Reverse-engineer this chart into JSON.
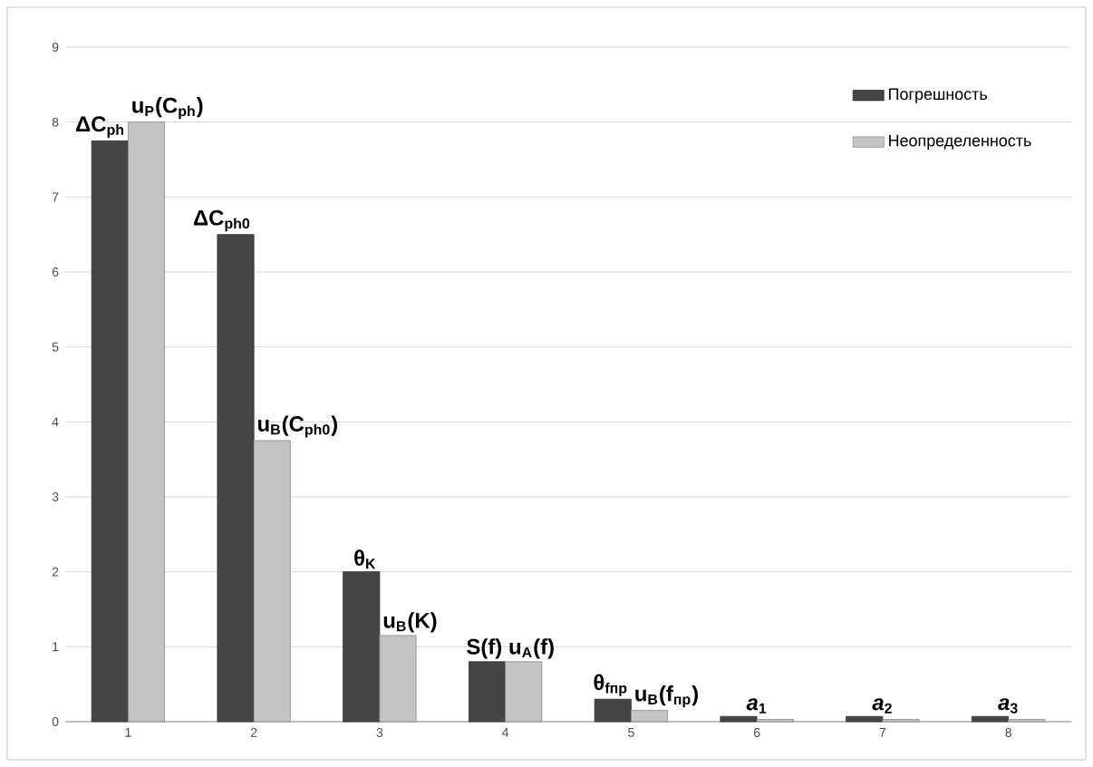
{
  "chart_data": {
    "type": "bar",
    "categories": [
      "1",
      "2",
      "3",
      "4",
      "5",
      "6",
      "7",
      "8"
    ],
    "series": [
      {
        "name": "Погрешность",
        "color": "#454545",
        "values": [
          7.75,
          6.5,
          2.0,
          0.8,
          0.3,
          0.07,
          0.07,
          0.07
        ]
      },
      {
        "name": "Неопределенность",
        "color": "#c4c4c4",
        "values": [
          8.0,
          3.75,
          1.15,
          0.8,
          0.15,
          0.03,
          0.03,
          0.03
        ]
      }
    ],
    "ylim": [
      0,
      9
    ],
    "yticks": [
      0,
      1,
      2,
      3,
      4,
      5,
      6,
      7,
      8,
      9
    ],
    "grid": "y",
    "legend": "top right",
    "annotations": [
      {
        "text": "ΔC$_{ph}$",
        "x": "1",
        "y": 7.75
      },
      {
        "text": "u$_{P}$(C$_{ph}$)",
        "x": "1",
        "y": 8.0
      },
      {
        "text": "ΔC$_{ph0}$",
        "x": "2",
        "y": 6.5
      },
      {
        "text": "u$_{B}$(C$_{ph0}$)",
        "x": "2",
        "y": 3.75
      },
      {
        "text": "θ$_{K}$",
        "x": "3",
        "y": 2.0
      },
      {
        "text": "u$_{B}$(K)",
        "x": "3",
        "y": 1.15
      },
      {
        "text": "S(f)",
        "x": "4",
        "y": 0.8
      },
      {
        "text": "u$_{A}$(f)",
        "x": "4",
        "y": 0.8
      },
      {
        "text": "θ$_{fпр}$",
        "x": "5",
        "y": 0.3
      },
      {
        "text": "u$_{B}$(f$_{пр}$)",
        "x": "5",
        "y": 0.15
      },
      {
        "text": "*a*$_{1}$",
        "x": "6",
        "y": 0.07
      },
      {
        "text": "*a*$_{2}$",
        "x": "7",
        "y": 0.07
      },
      {
        "text": "*a*$_{3}$",
        "x": "8",
        "y": 0.07
      }
    ]
  }
}
